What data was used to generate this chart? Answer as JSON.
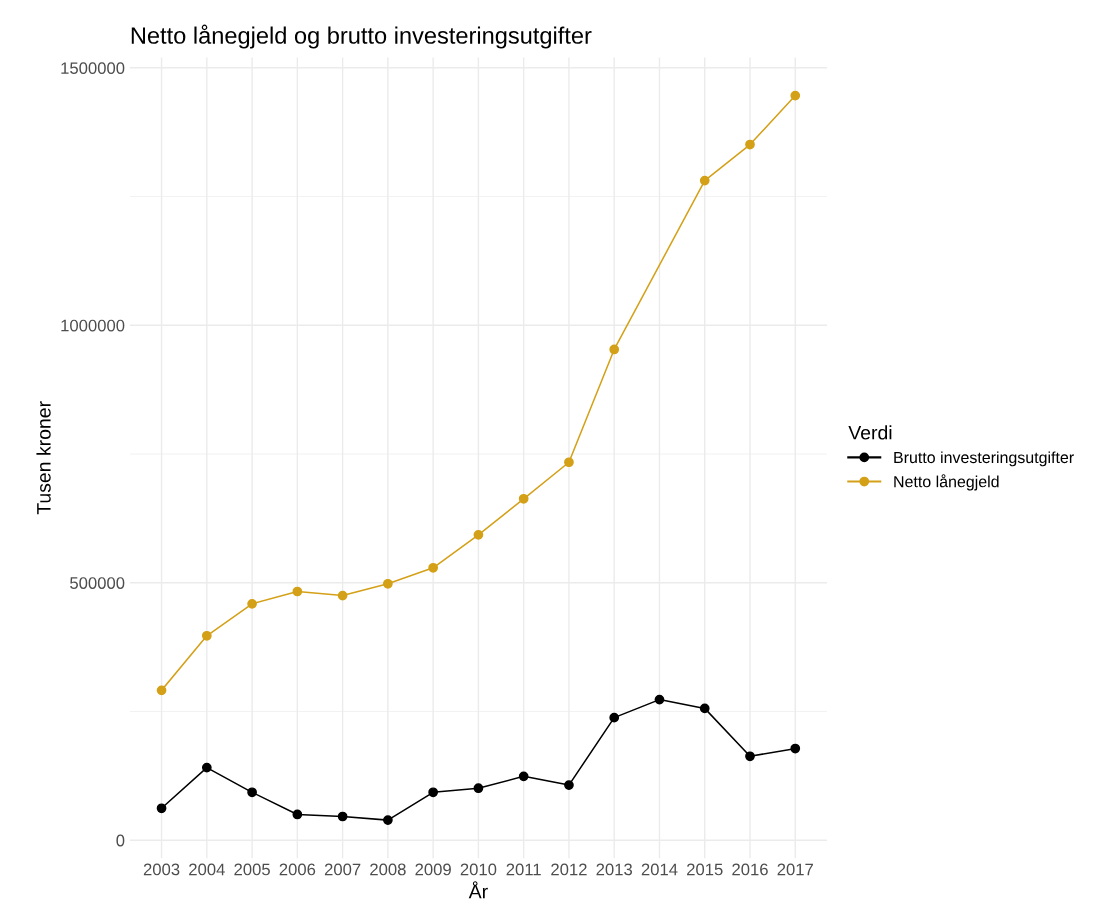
{
  "chart_data": {
    "type": "line",
    "title": "Netto lånegjeld og brutto investeringsutgifter",
    "xlabel": "År",
    "ylabel": "Tusen kroner",
    "legend_title": "Verdi",
    "x": [
      2003,
      2004,
      2005,
      2006,
      2007,
      2008,
      2009,
      2010,
      2011,
      2012,
      2013,
      2014,
      2015,
      2016,
      2017
    ],
    "series": [
      {
        "name": "Brutto investeringsutgifter",
        "color": "#000000",
        "values": [
          62000,
          141000,
          93000,
          50000,
          46000,
          39000,
          93000,
          101000,
          124000,
          107000,
          238000,
          273000,
          256000,
          163000,
          178000
        ]
      },
      {
        "name": "Netto lånegjeld",
        "color": "#d4a017",
        "x": [
          2003,
          2004,
          2005,
          2006,
          2007,
          2008,
          2009,
          2010,
          2011,
          2012,
          2013,
          2015,
          2016,
          2017
        ],
        "values": [
          291000,
          397000,
          459000,
          483000,
          475000,
          498000,
          529000,
          593000,
          663000,
          734000,
          953000,
          1281000,
          1351000,
          1446000
        ]
      }
    ],
    "xlim": [
      2002.3,
      2017.7
    ],
    "xticks": [
      2003,
      2004,
      2005,
      2006,
      2007,
      2008,
      2009,
      2010,
      2011,
      2012,
      2013,
      2014,
      2015,
      2016,
      2017
    ],
    "ylim": [
      -35000,
      1520000
    ],
    "yticks": [
      0,
      500000,
      1000000,
      1500000
    ],
    "grid": true,
    "legend": "right",
    "marker": "circle",
    "line_style": "solid"
  }
}
